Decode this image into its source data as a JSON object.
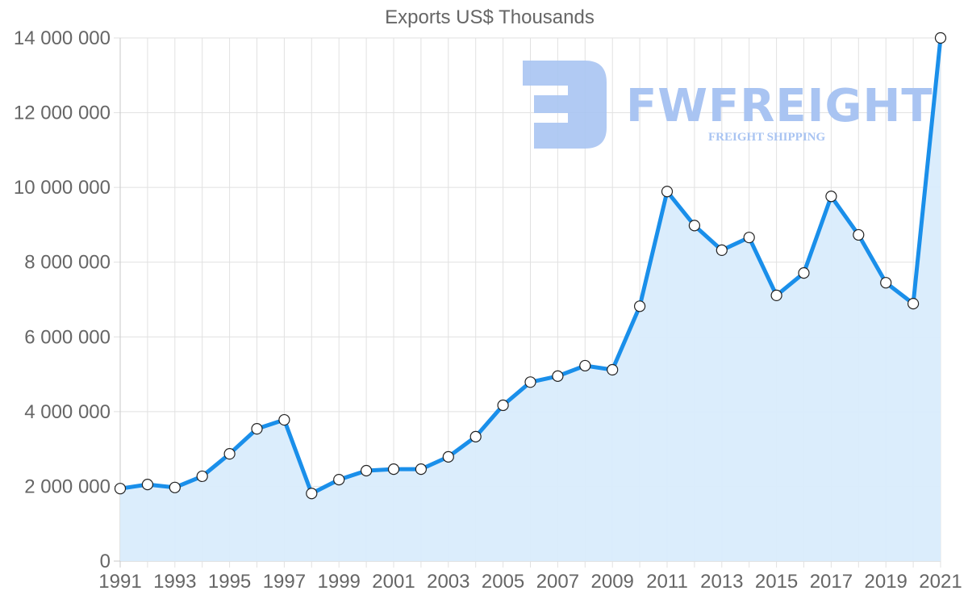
{
  "chart_data": {
    "type": "line",
    "title": "Exports US$ Thousands",
    "xlabel": "",
    "ylabel": "",
    "ylim": [
      0,
      14000000
    ],
    "yticks": [
      "0",
      "2 000 000",
      "4 000 000",
      "6 000 000",
      "8 000 000",
      "10 000 000",
      "12 000 000",
      "14 000 000"
    ],
    "xtick_labels": [
      "1991",
      "1993",
      "1995",
      "1997",
      "1999",
      "2001",
      "2003",
      "2005",
      "2007",
      "2009",
      "2011",
      "2013",
      "2015",
      "2017",
      "2019",
      "2021"
    ],
    "grid": true,
    "legend": null,
    "fill": "area",
    "x": [
      1991,
      1992,
      1993,
      1994,
      1995,
      1996,
      1997,
      1998,
      1999,
      2000,
      2001,
      2002,
      2003,
      2004,
      2005,
      2006,
      2007,
      2008,
      2009,
      2010,
      2011,
      2012,
      2013,
      2014,
      2015,
      2016,
      2017,
      2018,
      2019,
      2020,
      2021
    ],
    "series": [
      {
        "name": "Exports US$ Thousands",
        "color": "#1a8fea",
        "fill_color": "#d9ecfc",
        "values": [
          1940000,
          2050000,
          1970000,
          2270000,
          2870000,
          3540000,
          3780000,
          1810000,
          2180000,
          2420000,
          2460000,
          2460000,
          2790000,
          3330000,
          4170000,
          4790000,
          4950000,
          5230000,
          5120000,
          6820000,
          9890000,
          8980000,
          8320000,
          8660000,
          7110000,
          7710000,
          9760000,
          8730000,
          7450000,
          6890000,
          14000000
        ]
      }
    ]
  },
  "watermark": {
    "brand": "FWFREIGHT",
    "tagline": "FREIGHT SHIPPING",
    "color": "#a9c4f2"
  }
}
